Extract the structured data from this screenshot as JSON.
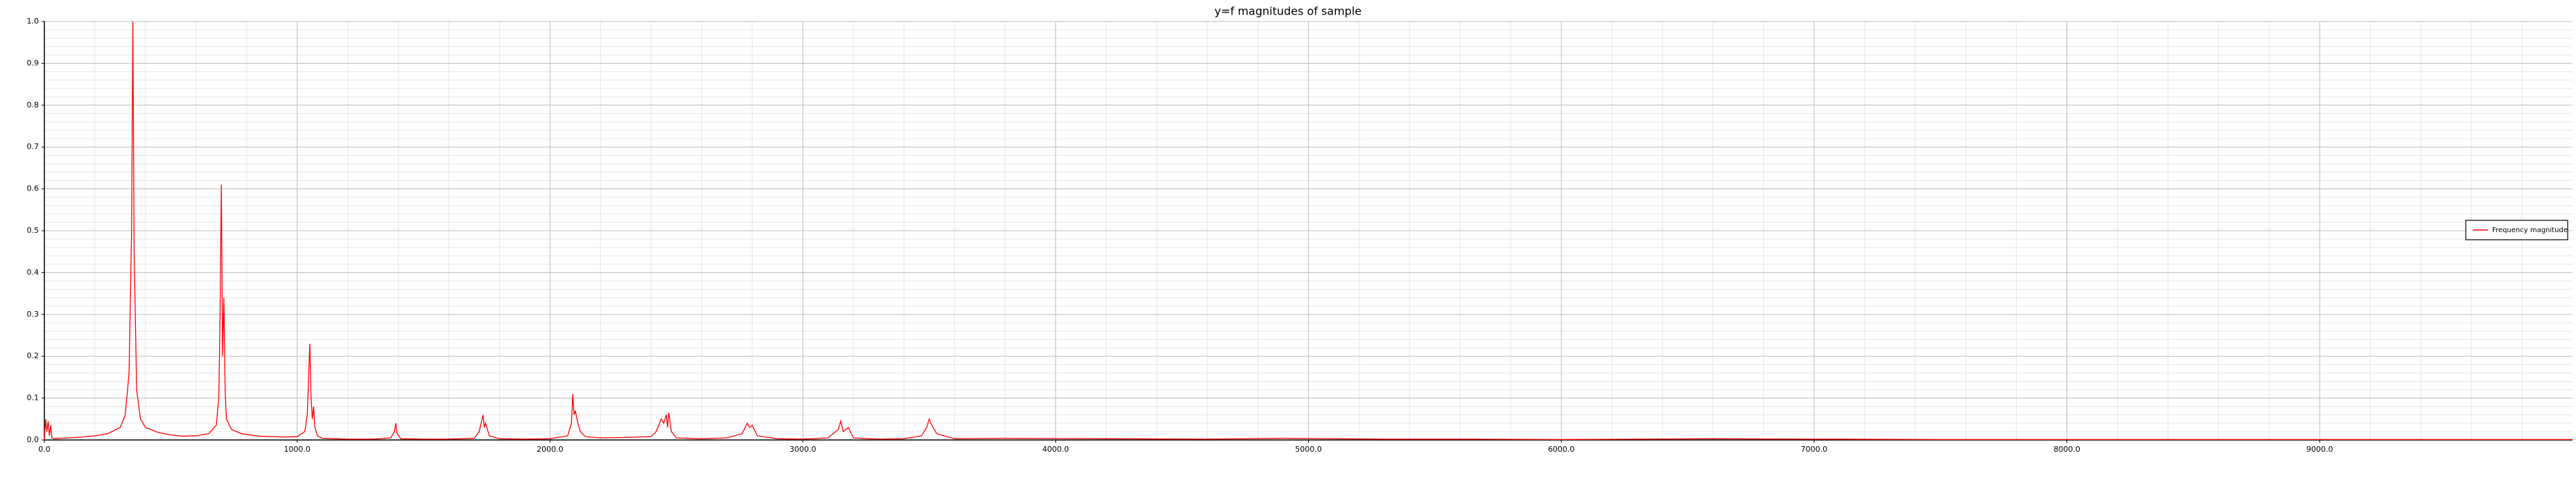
{
  "chart_data": {
    "type": "line",
    "title": "y=f magnitudes of sample",
    "x": [
      0,
      5,
      10,
      15,
      20,
      25,
      30,
      40,
      60,
      100,
      150,
      200,
      250,
      300,
      320,
      335,
      345,
      350,
      355,
      365,
      380,
      400,
      450,
      500,
      550,
      600,
      650,
      680,
      690,
      695,
      700,
      705,
      710,
      715,
      720,
      740,
      780,
      850,
      950,
      1000,
      1030,
      1040,
      1050,
      1055,
      1060,
      1065,
      1070,
      1080,
      1100,
      1200,
      1300,
      1370,
      1385,
      1390,
      1395,
      1410,
      1500,
      1600,
      1700,
      1720,
      1735,
      1740,
      1745,
      1760,
      1800,
      1900,
      2000,
      2070,
      2085,
      2090,
      2095,
      2100,
      2110,
      2120,
      2140,
      2200,
      2300,
      2400,
      2420,
      2440,
      2450,
      2460,
      2465,
      2470,
      2480,
      2500,
      2600,
      2700,
      2760,
      2780,
      2790,
      2800,
      2820,
      2900,
      3000,
      3100,
      3140,
      3150,
      3160,
      3180,
      3200,
      3300,
      3400,
      3470,
      3490,
      3500,
      3510,
      3530,
      3600,
      3800,
      4200,
      4600,
      4900,
      5300,
      5600,
      6000,
      6600,
      7000,
      7500,
      8000,
      9000,
      10000
    ],
    "series": [
      {
        "name": "Frequency magnitude",
        "color": "#ff0000",
        "values": [
          0.0,
          0.05,
          0.02,
          0.045,
          0.01,
          0.035,
          0.005,
          0.003,
          0.004,
          0.005,
          0.007,
          0.01,
          0.015,
          0.03,
          0.06,
          0.16,
          0.5,
          1.0,
          0.45,
          0.12,
          0.05,
          0.03,
          0.018,
          0.012,
          0.009,
          0.01,
          0.015,
          0.035,
          0.1,
          0.3,
          0.61,
          0.2,
          0.34,
          0.12,
          0.05,
          0.025,
          0.015,
          0.009,
          0.007,
          0.008,
          0.02,
          0.06,
          0.23,
          0.1,
          0.05,
          0.08,
          0.03,
          0.01,
          0.004,
          0.002,
          0.002,
          0.005,
          0.02,
          0.04,
          0.015,
          0.003,
          0.002,
          0.002,
          0.004,
          0.02,
          0.06,
          0.03,
          0.04,
          0.01,
          0.003,
          0.002,
          0.003,
          0.01,
          0.04,
          0.11,
          0.06,
          0.07,
          0.04,
          0.02,
          0.008,
          0.005,
          0.006,
          0.008,
          0.02,
          0.05,
          0.04,
          0.06,
          0.03,
          0.065,
          0.02,
          0.005,
          0.003,
          0.005,
          0.015,
          0.04,
          0.03,
          0.035,
          0.01,
          0.003,
          0.002,
          0.005,
          0.025,
          0.045,
          0.02,
          0.03,
          0.005,
          0.002,
          0.003,
          0.01,
          0.03,
          0.05,
          0.035,
          0.015,
          0.003,
          0.004,
          0.003,
          0.002,
          0.004,
          0.002,
          0.002,
          0.001,
          0.003,
          0.002,
          0.001,
          0.001,
          0.001,
          0.001
        ]
      }
    ],
    "xlim": [
      0,
      10000
    ],
    "xticks": [
      {
        "value": 0,
        "label": "0.0"
      },
      {
        "value": 1000,
        "label": "1000.0"
      },
      {
        "value": 2000,
        "label": "2000.0"
      },
      {
        "value": 3000,
        "label": "3000.0"
      },
      {
        "value": 4000,
        "label": "4000.0"
      },
      {
        "value": 5000,
        "label": "5000.0"
      },
      {
        "value": 6000,
        "label": "6000.0"
      },
      {
        "value": 7000,
        "label": "7000.0"
      },
      {
        "value": 8000,
        "label": "8000.0"
      },
      {
        "value": 9000,
        "label": "9000.0"
      }
    ],
    "ylim": [
      0,
      1
    ],
    "yticks": [
      {
        "value": 0,
        "label": "0.0"
      },
      {
        "value": 0.1,
        "label": "0.1"
      },
      {
        "value": 0.2,
        "label": "0.2"
      },
      {
        "value": 0.3,
        "label": "0.3"
      },
      {
        "value": 0.4,
        "label": "0.4"
      },
      {
        "value": 0.5,
        "label": "0.5"
      },
      {
        "value": 0.6,
        "label": "0.6"
      },
      {
        "value": 0.7,
        "label": "0.7"
      },
      {
        "value": 0.8,
        "label": "0.8"
      },
      {
        "value": 0.9,
        "label": "0.9"
      },
      {
        "value": 1,
        "label": "1.0"
      }
    ],
    "grid": true,
    "minor_grid": true,
    "legend": "right"
  }
}
